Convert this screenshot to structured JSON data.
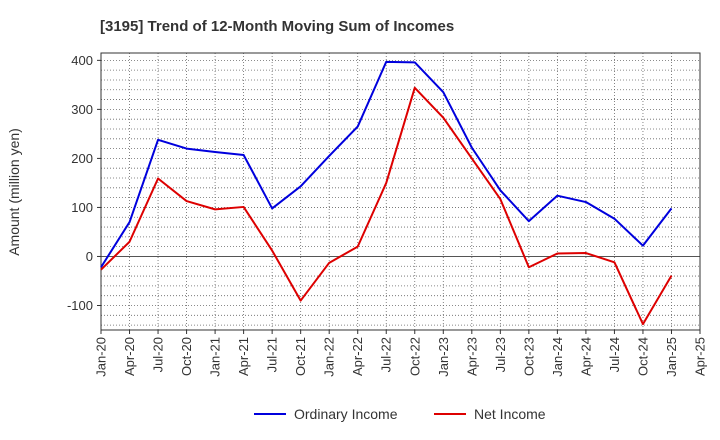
{
  "chart_data": {
    "type": "line",
    "title": "[3195]  Trend of 12-Month Moving Sum of Incomes",
    "xlabel": "",
    "ylabel": "Amount (million yen)",
    "ylim": [
      -150,
      415
    ],
    "yticks": [
      -100,
      0,
      100,
      200,
      300,
      400
    ],
    "categories": [
      "Jan-20",
      "Apr-20",
      "Jul-20",
      "Oct-20",
      "Jan-21",
      "Apr-21",
      "Jul-21",
      "Oct-21",
      "Jan-22",
      "Apr-22",
      "Jul-22",
      "Oct-22",
      "Jan-23",
      "Apr-23",
      "Jul-23",
      "Oct-23",
      "Jan-24",
      "Apr-24",
      "Jul-24",
      "Oct-24",
      "Jan-25",
      "Apr-25"
    ],
    "grid": true,
    "legend_position": "bottom-center",
    "series": [
      {
        "name": "Ordinary Income",
        "color": "#0000dd",
        "values": [
          -22,
          70,
          238,
          220,
          213,
          207,
          98,
          143,
          205,
          265,
          397,
          396,
          335,
          222,
          135,
          72,
          124,
          111,
          77,
          22,
          98,
          null
        ]
      },
      {
        "name": "Net Income",
        "color": "#dd0000",
        "values": [
          -27,
          30,
          159,
          113,
          96,
          101,
          12,
          -90,
          -13,
          20,
          150,
          344,
          283,
          200,
          117,
          -22,
          6,
          7,
          -12,
          -138,
          -39,
          null
        ]
      }
    ]
  }
}
